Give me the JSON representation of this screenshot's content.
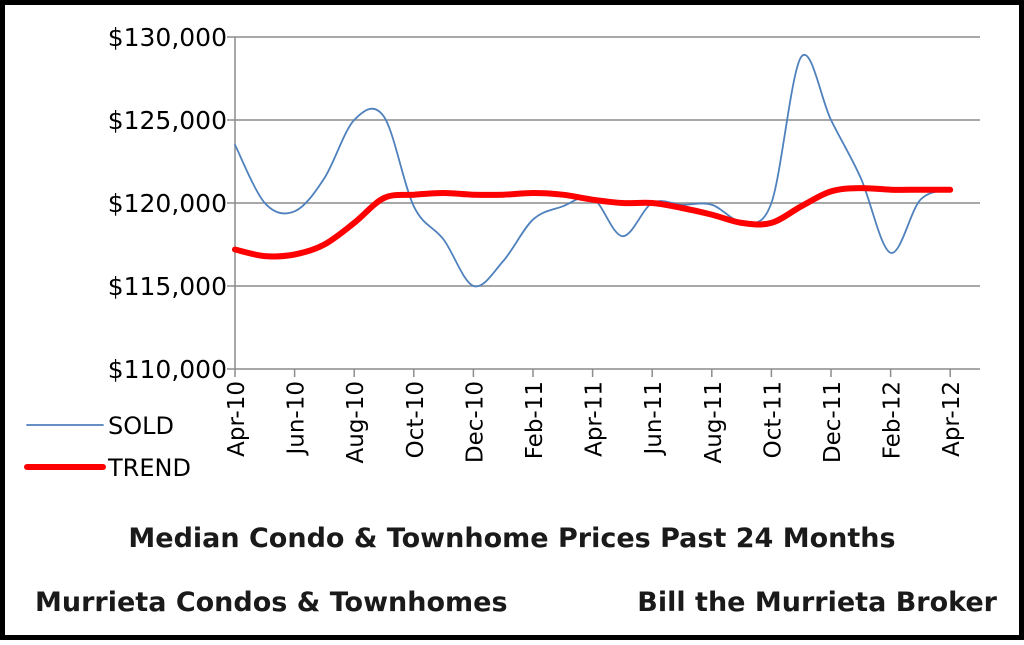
{
  "chart_data": {
    "type": "line",
    "categories": [
      "Apr-10",
      "May-10",
      "Jun-10",
      "Jul-10",
      "Aug-10",
      "Sep-10",
      "Oct-10",
      "Nov-10",
      "Dec-10",
      "Jan-11",
      "Feb-11",
      "Mar-11",
      "Apr-11",
      "May-11",
      "Jun-11",
      "Jul-11",
      "Aug-11",
      "Sep-11",
      "Oct-11",
      "Nov-11",
      "Dec-11",
      "Jan-12",
      "Feb-12",
      "Mar-12",
      "Apr-12"
    ],
    "tick_labels": [
      "Apr-10",
      "Jun-10",
      "Aug-10",
      "Oct-10",
      "Dec-10",
      "Feb-11",
      "Apr-11",
      "Jun-11",
      "Aug-11",
      "Oct-11",
      "Dec-11",
      "Feb-12",
      "Apr-12"
    ],
    "y_tick_labels": [
      "$110,000",
      "$115,000",
      "$120,000",
      "$125,000",
      "$130,000"
    ],
    "y_ticks": [
      110000,
      115000,
      120000,
      125000,
      130000
    ],
    "ylim": [
      110000,
      130000
    ],
    "grid": "horizontal",
    "legend_position": "bottom-left",
    "series": [
      {
        "name": "SOLD",
        "color": "#4f81bd",
        "values": [
          123500,
          120000,
          119500,
          121500,
          125000,
          125200,
          119800,
          117800,
          115000,
          116500,
          119000,
          119800,
          120300,
          118000,
          120000,
          119900,
          119900,
          118900,
          120000,
          128800,
          125000,
          121500,
          117000,
          120200,
          120800
        ]
      },
      {
        "name": "TREND",
        "color": "#ff0000",
        "values": [
          117200,
          116800,
          116900,
          117500,
          118800,
          120300,
          120500,
          120600,
          120500,
          120500,
          120600,
          120500,
          120200,
          120000,
          120000,
          119700,
          119300,
          118800,
          118800,
          119800,
          120700,
          120900,
          120800,
          120800,
          120800
        ]
      }
    ]
  },
  "captions": {
    "title": "Median Condo & Townhome Prices Past 24 Months",
    "left": "Murrieta  Condos & Townhomes",
    "right": "Bill the Murrieta Broker"
  }
}
